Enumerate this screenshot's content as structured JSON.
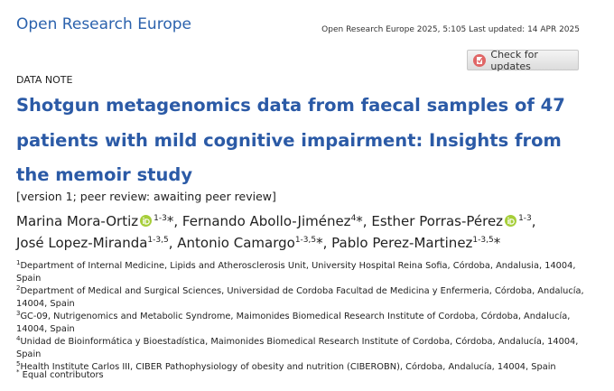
{
  "header": {
    "journal": "Open Research Europe",
    "citation": "Open Research Europe 2025, 5:105 Last updated: 14 APR 2025",
    "check_updates": "Check for updates"
  },
  "article_type": "DATA NOTE",
  "title": "Shotgun metagenomics data from faecal samples of 47 patients with mild cognitive impairment: Insights from the memoir study",
  "version": "[version 1; peer review: awaiting peer review]",
  "authors": [
    {
      "name": "Marina Mora-Ortiz",
      "sup": "1-3",
      "after": "*,"
    },
    {
      "name": "Fernando Abollo-Jiménez",
      "sup": "4",
      "after": "*,"
    },
    {
      "name": "Esther Porras-Pérez",
      "sup": "1-3",
      "after": ","
    },
    {
      "name": "José Lopez-Miranda",
      "sup": "1-3,5",
      "after": ","
    },
    {
      "name": "Antonio Camargo",
      "sup": "1-3,5",
      "after": "*,"
    },
    {
      "name": "Pablo Perez-Martinez",
      "sup": "1-3,5",
      "after": "*"
    }
  ],
  "affiliations": [
    {
      "num": "1",
      "text": "Department of Internal Medicine, Lipids and Atherosclerosis Unit, University Hospital Reina Sofia, Córdoba, Andalusia, 14004, Spain"
    },
    {
      "num": "2",
      "text": "Department of Medical and Surgical Sciences, Universidad de Cordoba Facultad de Medicina y Enfermeria, Córdoba, Andalucía, 14004, Spain"
    },
    {
      "num": "3",
      "text": "GC-09, Nutrigenomics and Metabolic Syndrome, Maimonides Biomedical Research Institute of Cordoba, Córdoba, Andalucía, 14004, Spain"
    },
    {
      "num": "4",
      "text": "Unidad de Bioinformática y Bioestadística, Maimonides Biomedical Research Institute of Cordoba, Córdoba, Andalucía, 14004, Spain"
    },
    {
      "num": "5",
      "text": "Health Institute Carlos III, CIBER Pathophysiology of obesity and nutrition (CIBEROBN), Córdoba, Andalucía, 14004, Spain"
    }
  ],
  "footnote": {
    "mark": "*",
    "text": "Equal contributors"
  }
}
